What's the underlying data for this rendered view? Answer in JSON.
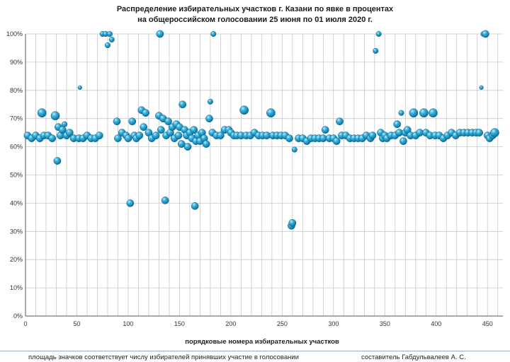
{
  "chart_data": {
    "type": "scatter",
    "title": "Распределение избирательных  участков  г. Казани по явке в процентах",
    "subtitle": "на общероссийском голосовании 25 июня по 01 июля 2020 г.",
    "xlabel": "порядковые номера избирательных участков",
    "ylabel": "",
    "xlim": [
      0,
      465
    ],
    "ylim": [
      0,
      100
    ],
    "x_ticks": [
      0,
      50,
      100,
      150,
      200,
      250,
      300,
      350,
      400,
      450
    ],
    "y_ticks": [
      0,
      10,
      20,
      30,
      40,
      50,
      60,
      70,
      80,
      90,
      100
    ],
    "x_tick_labels": [
      "0",
      "50",
      "100",
      "150",
      "200",
      "250",
      "300",
      "350",
      "400",
      "450"
    ],
    "y_tick_labels": [
      "0%",
      "10%",
      "20%",
      "30%",
      "40%",
      "50%",
      "60%",
      "70%",
      "80%",
      "90%",
      "100%"
    ],
    "grid": true,
    "bubble_color": "#2a9fc8",
    "series": [
      {
        "points": [
          [
            2,
            64,
            2
          ],
          [
            6,
            63,
            2
          ],
          [
            10,
            64,
            2
          ],
          [
            14,
            63,
            2
          ],
          [
            16,
            72,
            3
          ],
          [
            18,
            64,
            2
          ],
          [
            22,
            64,
            2
          ],
          [
            26,
            63,
            2
          ],
          [
            29,
            71,
            3
          ],
          [
            31,
            55,
            2
          ],
          [
            32,
            67,
            2
          ],
          [
            34,
            64,
            2
          ],
          [
            36,
            66,
            2
          ],
          [
            38,
            68,
            1
          ],
          [
            40,
            64,
            2
          ],
          [
            43,
            65,
            2
          ],
          [
            47,
            63,
            2
          ],
          [
            52,
            63,
            2
          ],
          [
            53,
            81,
            0.5
          ],
          [
            56,
            63,
            2
          ],
          [
            60,
            64,
            2
          ],
          [
            64,
            63,
            2
          ],
          [
            68,
            63,
            2
          ],
          [
            72,
            64,
            2
          ],
          [
            75,
            100,
            1
          ],
          [
            78,
            100,
            1
          ],
          [
            80,
            96,
            1
          ],
          [
            82,
            100,
            1
          ],
          [
            84,
            98,
            1
          ],
          [
            89,
            69,
            2
          ],
          [
            90,
            63,
            2
          ],
          [
            94,
            65,
            2
          ],
          [
            98,
            64,
            2
          ],
          [
            100,
            63,
            2
          ],
          [
            102,
            40,
            2
          ],
          [
            104,
            69,
            2
          ],
          [
            106,
            64,
            2
          ],
          [
            108,
            63,
            2
          ],
          [
            111,
            64,
            2
          ],
          [
            113,
            73,
            2
          ],
          [
            115,
            67,
            2
          ],
          [
            117,
            72,
            2
          ],
          [
            120,
            65,
            2
          ],
          [
            123,
            63,
            2
          ],
          [
            127,
            64,
            2
          ],
          [
            130,
            71,
            2
          ],
          [
            131,
            100,
            2
          ],
          [
            132,
            66,
            2
          ],
          [
            134,
            70,
            2
          ],
          [
            136,
            41,
            2
          ],
          [
            137,
            64,
            2
          ],
          [
            139,
            69,
            2
          ],
          [
            141,
            65,
            2
          ],
          [
            143,
            67,
            2
          ],
          [
            145,
            63,
            2
          ],
          [
            147,
            68,
            2
          ],
          [
            149,
            64,
            2
          ],
          [
            150,
            67,
            2
          ],
          [
            152,
            61,
            2
          ],
          [
            153,
            75,
            2
          ],
          [
            155,
            66,
            2
          ],
          [
            157,
            64,
            2
          ],
          [
            158,
            60,
            2
          ],
          [
            160,
            65,
            2
          ],
          [
            162,
            63,
            2
          ],
          [
            164,
            66,
            2
          ],
          [
            165,
            39,
            2
          ],
          [
            166,
            62,
            2
          ],
          [
            168,
            64,
            2
          ],
          [
            170,
            62,
            2
          ],
          [
            172,
            65,
            2
          ],
          [
            174,
            63,
            2
          ],
          [
            176,
            61,
            2
          ],
          [
            179,
            70,
            2
          ],
          [
            180,
            76,
            1
          ],
          [
            182,
            65,
            2
          ],
          [
            183,
            100,
            1
          ],
          [
            186,
            64,
            2
          ],
          [
            190,
            64,
            2
          ],
          [
            194,
            66,
            2
          ],
          [
            198,
            66,
            2
          ],
          [
            200,
            65,
            2
          ],
          [
            203,
            64,
            2
          ],
          [
            206,
            64,
            2
          ],
          [
            210,
            64,
            2
          ],
          [
            213,
            73,
            3
          ],
          [
            215,
            64,
            2
          ],
          [
            219,
            64,
            2
          ],
          [
            223,
            65,
            2
          ],
          [
            227,
            64,
            2
          ],
          [
            231,
            64,
            2
          ],
          [
            235,
            64,
            2
          ],
          [
            239,
            72,
            3
          ],
          [
            241,
            64,
            2
          ],
          [
            245,
            64,
            2
          ],
          [
            249,
            64,
            2
          ],
          [
            253,
            64,
            2
          ],
          [
            257,
            63,
            2
          ],
          [
            259,
            32,
            2
          ],
          [
            260,
            33,
            2
          ],
          [
            262,
            59,
            1
          ],
          [
            266,
            63,
            2
          ],
          [
            270,
            63,
            2
          ],
          [
            274,
            62,
            2
          ],
          [
            278,
            63,
            2
          ],
          [
            282,
            63,
            2
          ],
          [
            286,
            63,
            2
          ],
          [
            290,
            63,
            2
          ],
          [
            292,
            66,
            2
          ],
          [
            296,
            63,
            2
          ],
          [
            300,
            63,
            2
          ],
          [
            303,
            62,
            2
          ],
          [
            306,
            69,
            2
          ],
          [
            308,
            64,
            2
          ],
          [
            312,
            64,
            2
          ],
          [
            316,
            63,
            2
          ],
          [
            320,
            63,
            2
          ],
          [
            324,
            63,
            2
          ],
          [
            328,
            63,
            2
          ],
          [
            332,
            64,
            2
          ],
          [
            336,
            63,
            2
          ],
          [
            338,
            64,
            2
          ],
          [
            341,
            94,
            1
          ],
          [
            344,
            100,
            1
          ],
          [
            346,
            65,
            2
          ],
          [
            348,
            63,
            2
          ],
          [
            350,
            64,
            2
          ],
          [
            352,
            63,
            2
          ],
          [
            356,
            64,
            2
          ],
          [
            360,
            64,
            2
          ],
          [
            362,
            68,
            2
          ],
          [
            364,
            65,
            2
          ],
          [
            366,
            72,
            1
          ],
          [
            368,
            62,
            2
          ],
          [
            370,
            65,
            2
          ],
          [
            372,
            66,
            2
          ],
          [
            375,
            64,
            2
          ],
          [
            378,
            72,
            3
          ],
          [
            380,
            64,
            2
          ],
          [
            384,
            65,
            2
          ],
          [
            388,
            72,
            3
          ],
          [
            390,
            65,
            2
          ],
          [
            394,
            64,
            2
          ],
          [
            397,
            72,
            3
          ],
          [
            399,
            64,
            2
          ],
          [
            403,
            64,
            2
          ],
          [
            407,
            63,
            2
          ],
          [
            411,
            64,
            2
          ],
          [
            415,
            65,
            2
          ],
          [
            419,
            64,
            2
          ],
          [
            423,
            65,
            2
          ],
          [
            427,
            65,
            2
          ],
          [
            431,
            65,
            2
          ],
          [
            435,
            65,
            2
          ],
          [
            439,
            65,
            2
          ],
          [
            442,
            65,
            2
          ],
          [
            444,
            81,
            0.5
          ],
          [
            446,
            100,
            1
          ],
          [
            448,
            100,
            2
          ],
          [
            450,
            64,
            2
          ],
          [
            452,
            63,
            2
          ],
          [
            455,
            64,
            2
          ],
          [
            457,
            65,
            3
          ]
        ]
      }
    ]
  },
  "footer": {
    "note": "площадь значков соответствует числу избирателей принявших участие в голосовании",
    "author": "составитель Габдульвалеев А. С."
  }
}
